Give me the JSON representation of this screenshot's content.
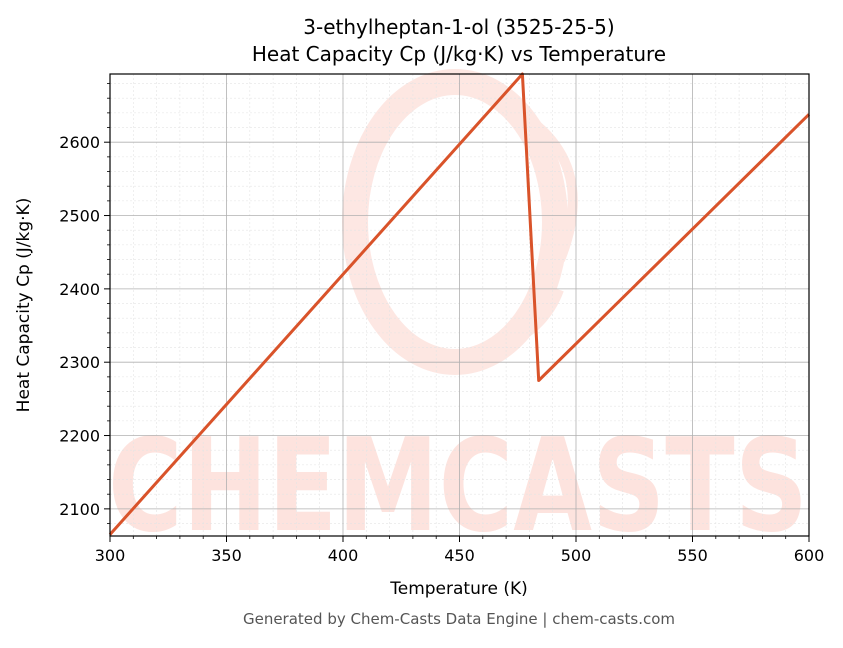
{
  "chart_data": {
    "type": "line",
    "title_line1": "3-ethylheptan-1-ol (3525-25-5)",
    "title_line2": "Heat Capacity Cp (J/kg·K) vs Temperature",
    "xlabel": "Temperature (K)",
    "ylabel": "Heat Capacity Cp (J/kg·K)",
    "xlim": [
      300,
      600
    ],
    "ylim": [
      2063,
      2693
    ],
    "xticks": [
      300,
      350,
      400,
      450,
      500,
      550,
      600
    ],
    "yticks": [
      2100,
      2200,
      2300,
      2400,
      2500,
      2600
    ],
    "grid": true,
    "series": [
      {
        "color": "#d9532a",
        "x": [
          300,
          477,
          484,
          600
        ],
        "y": [
          2065,
          2693,
          2275,
          2638
        ]
      }
    ]
  },
  "watermark": {
    "text": "CHEMCASTS",
    "color": "#fde3de"
  },
  "footer": "Generated by Chem-Casts Data Engine | chem-casts.com"
}
